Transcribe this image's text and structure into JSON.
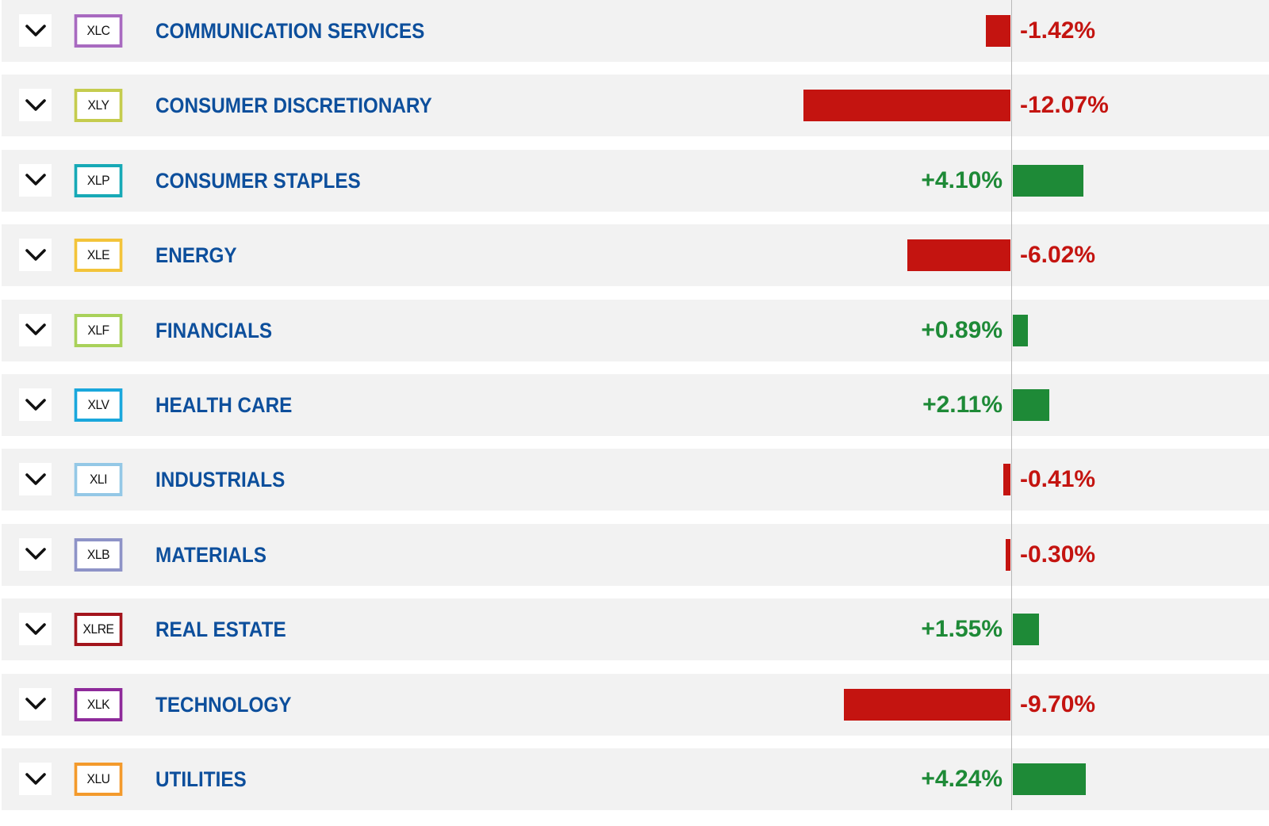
{
  "colors": {
    "negative": "#c41410",
    "positive": "#1e8a37",
    "sector_name": "#0d4f9c",
    "row_background": "#f2f2f2"
  },
  "chart_data": {
    "type": "bar",
    "orientation": "horizontal",
    "diverging": true,
    "categories": [
      "COMMUNICATION SERVICES",
      "CONSUMER DISCRETIONARY",
      "CONSUMER STAPLES",
      "ENERGY",
      "FINANCIALS",
      "HEALTH CARE",
      "INDUSTRIALS",
      "MATERIALS",
      "REAL ESTATE",
      "TECHNOLOGY",
      "UTILITIES"
    ],
    "values": [
      -1.42,
      -12.07,
      4.1,
      -6.02,
      0.89,
      2.11,
      -0.41,
      -0.3,
      1.55,
      -9.7,
      4.24
    ],
    "unit": "%"
  },
  "sectors": [
    {
      "ticker": "XLC",
      "name": "COMMUNICATION SERVICES",
      "change_label": "-1.42%",
      "change": -1.42,
      "ticker_color": "#a86ac0",
      "expand_icon": "chevron-down-icon"
    },
    {
      "ticker": "XLY",
      "name": "CONSUMER DISCRETIONARY",
      "change_label": "-12.07%",
      "change": -12.07,
      "ticker_color": "#c5cc4e",
      "expand_icon": "chevron-down-icon"
    },
    {
      "ticker": "XLP",
      "name": "CONSUMER STAPLES",
      "change_label": "+4.10%",
      "change": 4.1,
      "ticker_color": "#17a9b6",
      "expand_icon": "chevron-down-icon"
    },
    {
      "ticker": "XLE",
      "name": "ENERGY",
      "change_label": "-6.02%",
      "change": -6.02,
      "ticker_color": "#f3c43a",
      "expand_icon": "chevron-down-icon"
    },
    {
      "ticker": "XLF",
      "name": "FINANCIALS",
      "change_label": "+0.89%",
      "change": 0.89,
      "ticker_color": "#a9d15a",
      "expand_icon": "chevron-down-icon"
    },
    {
      "ticker": "XLV",
      "name": "HEALTH CARE",
      "change_label": "+2.11%",
      "change": 2.11,
      "ticker_color": "#1aa7dc",
      "expand_icon": "chevron-down-icon"
    },
    {
      "ticker": "XLI",
      "name": "INDUSTRIALS",
      "change_label": "-0.41%",
      "change": -0.41,
      "ticker_color": "#94c8e6",
      "expand_icon": "chevron-down-icon"
    },
    {
      "ticker": "XLB",
      "name": "MATERIALS",
      "change_label": "-0.30%",
      "change": -0.3,
      "ticker_color": "#8e93c7",
      "expand_icon": "chevron-down-icon"
    },
    {
      "ticker": "XLRE",
      "name": "REAL ESTATE",
      "change_label": "+1.55%",
      "change": 1.55,
      "ticker_color": "#a3141c",
      "expand_icon": "chevron-down-icon"
    },
    {
      "ticker": "XLK",
      "name": "TECHNOLOGY",
      "change_label": "-9.70%",
      "change": -9.7,
      "ticker_color": "#8e2a9a",
      "expand_icon": "chevron-down-icon"
    },
    {
      "ticker": "XLU",
      "name": "UTILITIES",
      "change_label": "+4.24%",
      "change": 4.24,
      "ticker_color": "#f39a2c",
      "expand_icon": "chevron-down-icon"
    }
  ]
}
